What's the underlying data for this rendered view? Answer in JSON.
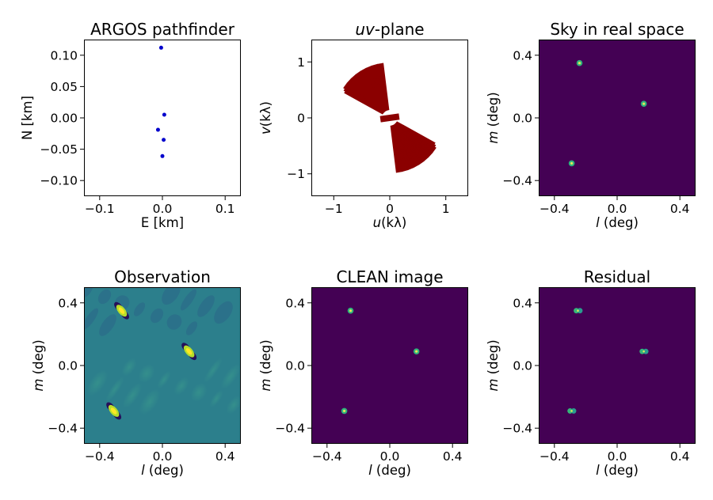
{
  "chart_data": [
    {
      "id": "argos",
      "type": "scatter",
      "title": "ARGOS pathfinder",
      "xlabel": "E [km]",
      "ylabel": "N [km]",
      "xlim": [
        -0.125,
        0.125
      ],
      "ylim": [
        -0.125,
        0.125
      ],
      "xticks": [
        {
          "v": -0.1,
          "t": "−0.1"
        },
        {
          "v": 0.0,
          "t": "0.0"
        },
        {
          "v": 0.1,
          "t": "0.1"
        }
      ],
      "yticks": [
        {
          "v": 0.1,
          "t": "0.10"
        },
        {
          "v": 0.05,
          "t": "0.05"
        },
        {
          "v": 0.0,
          "t": "0.00"
        },
        {
          "v": -0.05,
          "t": "−0.05"
        },
        {
          "v": -0.1,
          "t": "−0.10"
        }
      ],
      "points": [
        [
          -0.002,
          0.112
        ],
        [
          0.003,
          0.005
        ],
        [
          -0.007,
          -0.019
        ],
        [
          0.002,
          -0.035
        ],
        [
          0.0,
          -0.061
        ]
      ],
      "color": "#0000cc"
    },
    {
      "id": "uv",
      "type": "scatter",
      "title": "uv-plane",
      "title_italic": "uv",
      "title_rest": "-plane",
      "xlabel": "u(kλ)",
      "xlabel_italic": "u",
      "xlabel_rest": "(kλ)",
      "ylabel": "v(kλ)",
      "ylabel_italic": "v",
      "ylabel_rest": "(kλ)",
      "xlim": [
        -1.4,
        1.4
      ],
      "ylim": [
        -1.4,
        1.4
      ],
      "xticks": [
        {
          "v": -1,
          "t": "−1"
        },
        {
          "v": 0,
          "t": "0"
        },
        {
          "v": 1,
          "t": "1"
        }
      ],
      "yticks": [
        {
          "v": 1,
          "t": "1"
        },
        {
          "v": 0,
          "t": "0"
        },
        {
          "v": -1,
          "t": "−1"
        }
      ],
      "tracks": {
        "angle_start_deg": 100,
        "angle_end_deg": 148,
        "count": 24,
        "r_min": 0.15,
        "r_max": 0.98,
        "arc_deg": 6
      },
      "color": "#8b0000"
    },
    {
      "id": "sky",
      "type": "heatmap",
      "title": "Sky in real space",
      "xlabel": "l (deg)",
      "xlabel_italic": "l",
      "xlabel_rest": " (deg)",
      "ylabel": "m (deg)",
      "ylabel_italic": "m",
      "ylabel_rest": " (deg)",
      "xlim": [
        -0.5,
        0.5
      ],
      "ylim": [
        -0.5,
        0.5
      ],
      "xticks": [
        {
          "v": -0.4,
          "t": "−0.4"
        },
        {
          "v": 0.0,
          "t": "0.0"
        },
        {
          "v": 0.4,
          "t": "0.4"
        }
      ],
      "yticks": [
        {
          "v": 0.4,
          "t": "0.4"
        },
        {
          "v": 0.0,
          "t": "0.0"
        },
        {
          "v": -0.4,
          "t": "−0.4"
        }
      ],
      "sources": [
        [
          -0.24,
          0.35
        ],
        [
          0.17,
          0.09
        ],
        [
          -0.29,
          -0.29
        ]
      ],
      "style": "point",
      "background": "#440154"
    },
    {
      "id": "obs",
      "type": "heatmap",
      "title": "Observation",
      "xlabel": "l (deg)",
      "xlabel_italic": "l",
      "xlabel_rest": " (deg)",
      "ylabel": "m (deg)",
      "ylabel_italic": "m",
      "ylabel_rest": " (deg)",
      "xlim": [
        -0.5,
        0.5
      ],
      "ylim": [
        -0.5,
        0.5
      ],
      "xticks": [
        {
          "v": -0.4,
          "t": "−0.4"
        },
        {
          "v": 0.0,
          "t": "0.0"
        },
        {
          "v": 0.4,
          "t": "0.4"
        }
      ],
      "yticks": [
        {
          "v": 0.4,
          "t": "0.4"
        },
        {
          "v": 0.0,
          "t": "0.0"
        },
        {
          "v": -0.4,
          "t": "−0.4"
        }
      ],
      "sources": [
        [
          -0.26,
          0.35
        ],
        [
          0.17,
          0.09
        ],
        [
          -0.31,
          -0.29
        ]
      ],
      "style": "dirty",
      "background": "#2c7f8c"
    },
    {
      "id": "clean",
      "type": "heatmap",
      "title": "CLEAN image",
      "xlabel": "l (deg)",
      "xlabel_italic": "l",
      "xlabel_rest": " (deg)",
      "ylabel": "m (deg)",
      "ylabel_italic": "m",
      "ylabel_rest": " (deg)",
      "xlim": [
        -0.5,
        0.5
      ],
      "ylim": [
        -0.5,
        0.5
      ],
      "xticks": [
        {
          "v": -0.4,
          "t": "−0.4"
        },
        {
          "v": 0.0,
          "t": "0.0"
        },
        {
          "v": 0.4,
          "t": "0.4"
        }
      ],
      "yticks": [
        {
          "v": 0.4,
          "t": "0.4"
        },
        {
          "v": 0.0,
          "t": "0.0"
        },
        {
          "v": -0.4,
          "t": "−0.4"
        }
      ],
      "sources": [
        [
          -0.25,
          0.35
        ],
        [
          0.17,
          0.09
        ],
        [
          -0.29,
          -0.29
        ]
      ],
      "style": "point",
      "background": "#440154"
    },
    {
      "id": "resid",
      "type": "heatmap",
      "title": "Residual",
      "xlabel": "l (deg)",
      "xlabel_italic": "l",
      "xlabel_rest": " (deg)",
      "ylabel": "m (deg)",
      "ylabel_italic": "m",
      "ylabel_rest": " (deg)",
      "xlim": [
        -0.5,
        0.5
      ],
      "ylim": [
        -0.5,
        0.5
      ],
      "xticks": [
        {
          "v": -0.4,
          "t": "−0.4"
        },
        {
          "v": 0.0,
          "t": "0.0"
        },
        {
          "v": 0.4,
          "t": "0.4"
        }
      ],
      "yticks": [
        {
          "v": 0.4,
          "t": "0.4"
        },
        {
          "v": 0.0,
          "t": "0.0"
        },
        {
          "v": -0.4,
          "t": "−0.4"
        }
      ],
      "sources": [
        [
          -0.25,
          0.35
        ],
        [
          0.17,
          0.09
        ],
        [
          -0.29,
          -0.29
        ]
      ],
      "style": "residual",
      "background": "#440154"
    }
  ]
}
